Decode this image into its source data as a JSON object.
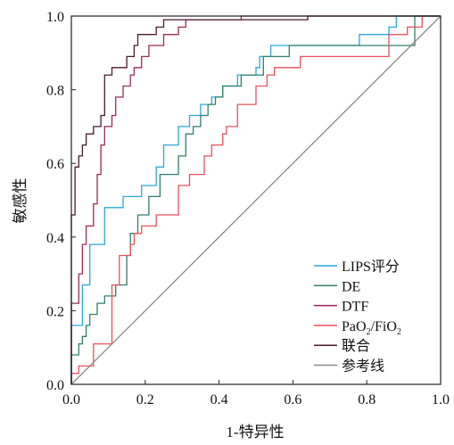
{
  "chart_data": {
    "type": "line",
    "title": "",
    "xlabel": "1-特异性",
    "ylabel": "敏感性",
    "xlim": [
      0,
      1
    ],
    "ylim": [
      0,
      1
    ],
    "xticks": [
      "0.0",
      "0.2",
      "0.4",
      "0.6",
      "0.8",
      "1.0"
    ],
    "yticks": [
      "0.0",
      "0.2",
      "0.4",
      "0.6",
      "0.8",
      "1.0"
    ],
    "grid": false,
    "legend_position": "bottom-right",
    "series": [
      {
        "name": "LIPS评分",
        "legend_main": "LIPS评分",
        "color": "#2aa7d8",
        "x": [
          0,
          0,
          0.03,
          0.03,
          0.05,
          0.05,
          0.09,
          0.09,
          0.14,
          0.14,
          0.19,
          0.19,
          0.23,
          0.23,
          0.25,
          0.25,
          0.29,
          0.29,
          0.32,
          0.32,
          0.35,
          0.35,
          0.38,
          0.38,
          0.41,
          0.41,
          0.45,
          0.45,
          0.5,
          0.5,
          0.51,
          0.51,
          0.54,
          0.54,
          0.78,
          0.78,
          0.86,
          0.86,
          0.88,
          0.88,
          1.0
        ],
        "y": [
          0,
          0.16,
          0.16,
          0.27,
          0.27,
          0.38,
          0.38,
          0.48,
          0.48,
          0.51,
          0.51,
          0.54,
          0.54,
          0.59,
          0.59,
          0.65,
          0.65,
          0.7,
          0.7,
          0.73,
          0.73,
          0.76,
          0.76,
          0.78,
          0.78,
          0.81,
          0.81,
          0.84,
          0.84,
          0.86,
          0.86,
          0.89,
          0.89,
          0.92,
          0.92,
          0.95,
          0.95,
          0.97,
          0.97,
          1.0,
          1.0
        ]
      },
      {
        "name": "DE",
        "legend_main": "DE",
        "color": "#2f7f6f",
        "x": [
          0,
          0,
          0.02,
          0.02,
          0.03,
          0.03,
          0.04,
          0.04,
          0.05,
          0.05,
          0.07,
          0.07,
          0.09,
          0.09,
          0.12,
          0.12,
          0.15,
          0.15,
          0.16,
          0.16,
          0.18,
          0.18,
          0.21,
          0.21,
          0.24,
          0.24,
          0.29,
          0.29,
          0.31,
          0.31,
          0.33,
          0.33,
          0.35,
          0.35,
          0.37,
          0.37,
          0.39,
          0.39,
          0.41,
          0.41,
          0.46,
          0.46,
          0.52,
          0.52,
          0.59,
          0.59,
          0.93,
          0.93,
          1.0
        ],
        "y": [
          0,
          0.08,
          0.08,
          0.11,
          0.11,
          0.13,
          0.13,
          0.16,
          0.16,
          0.19,
          0.19,
          0.22,
          0.22,
          0.24,
          0.24,
          0.27,
          0.27,
          0.35,
          0.35,
          0.41,
          0.41,
          0.46,
          0.46,
          0.51,
          0.51,
          0.57,
          0.57,
          0.62,
          0.62,
          0.68,
          0.68,
          0.7,
          0.7,
          0.73,
          0.73,
          0.76,
          0.76,
          0.78,
          0.78,
          0.81,
          0.81,
          0.84,
          0.84,
          0.89,
          0.89,
          0.92,
          0.92,
          1.0,
          1.0
        ]
      },
      {
        "name": "DTF",
        "legend_main": "DTF",
        "color": "#9a2a5a",
        "x": [
          0,
          0,
          0.02,
          0.02,
          0.03,
          0.03,
          0.04,
          0.04,
          0.06,
          0.06,
          0.07,
          0.07,
          0.08,
          0.08,
          0.09,
          0.09,
          0.11,
          0.11,
          0.12,
          0.12,
          0.14,
          0.14,
          0.16,
          0.16,
          0.17,
          0.17,
          0.19,
          0.19,
          0.21,
          0.21,
          0.25,
          0.25,
          0.29,
          0.29,
          0.31,
          0.31,
          0.46,
          0.46,
          0.87,
          0.87,
          1.0
        ],
        "y": [
          0,
          0.22,
          0.22,
          0.3,
          0.3,
          0.38,
          0.38,
          0.43,
          0.43,
          0.49,
          0.49,
          0.57,
          0.57,
          0.65,
          0.65,
          0.7,
          0.7,
          0.73,
          0.73,
          0.78,
          0.78,
          0.81,
          0.81,
          0.84,
          0.84,
          0.86,
          0.86,
          0.89,
          0.89,
          0.92,
          0.92,
          0.95,
          0.95,
          0.97,
          0.97,
          0.99,
          0.99,
          1.0,
          1.0,
          1.0,
          1.0
        ]
      },
      {
        "name": "PaO2/FiO2",
        "legend_main": "PaO",
        "legend_sub1": "2",
        "legend_mid": "/FiO",
        "legend_sub2": "2",
        "color": "#e8505a",
        "x": [
          0,
          0,
          0.02,
          0.02,
          0.06,
          0.06,
          0.11,
          0.11,
          0.13,
          0.13,
          0.16,
          0.16,
          0.17,
          0.17,
          0.19,
          0.19,
          0.23,
          0.23,
          0.29,
          0.29,
          0.32,
          0.32,
          0.36,
          0.36,
          0.38,
          0.38,
          0.41,
          0.41,
          0.42,
          0.42,
          0.45,
          0.45,
          0.5,
          0.5,
          0.53,
          0.53,
          0.55,
          0.55,
          0.62,
          0.62,
          0.86,
          0.86,
          0.91,
          0.91,
          0.95,
          0.95,
          1.0
        ],
        "y": [
          0,
          0.03,
          0.03,
          0.05,
          0.05,
          0.11,
          0.11,
          0.27,
          0.27,
          0.35,
          0.35,
          0.38,
          0.38,
          0.41,
          0.41,
          0.43,
          0.43,
          0.46,
          0.46,
          0.54,
          0.54,
          0.57,
          0.57,
          0.62,
          0.62,
          0.65,
          0.65,
          0.68,
          0.68,
          0.7,
          0.7,
          0.76,
          0.76,
          0.81,
          0.81,
          0.84,
          0.84,
          0.86,
          0.86,
          0.89,
          0.89,
          0.95,
          0.95,
          0.97,
          0.97,
          1.0,
          1.0
        ]
      },
      {
        "name": "联合",
        "legend_main": "联合",
        "color": "#4a1a2c",
        "x": [
          0,
          0,
          0.01,
          0.01,
          0.02,
          0.02,
          0.03,
          0.03,
          0.04,
          0.04,
          0.06,
          0.06,
          0.08,
          0.08,
          0.09,
          0.09,
          0.11,
          0.11,
          0.15,
          0.15,
          0.17,
          0.17,
          0.18,
          0.18,
          0.2,
          0.2,
          0.23,
          0.23,
          0.25,
          0.25,
          0.64,
          0.64,
          1.0
        ],
        "y": [
          0,
          0.46,
          0.46,
          0.59,
          0.59,
          0.62,
          0.62,
          0.65,
          0.65,
          0.68,
          0.68,
          0.7,
          0.7,
          0.73,
          0.73,
          0.84,
          0.84,
          0.86,
          0.86,
          0.89,
          0.89,
          0.92,
          0.92,
          0.95,
          0.95,
          0.95,
          0.95,
          0.97,
          0.97,
          0.99,
          0.99,
          1.0,
          1.0
        ]
      },
      {
        "name": "参考线",
        "legend_main": "参考线",
        "color": "#8a8a8a",
        "x": [
          0,
          1
        ],
        "y": [
          0,
          1
        ]
      }
    ]
  }
}
